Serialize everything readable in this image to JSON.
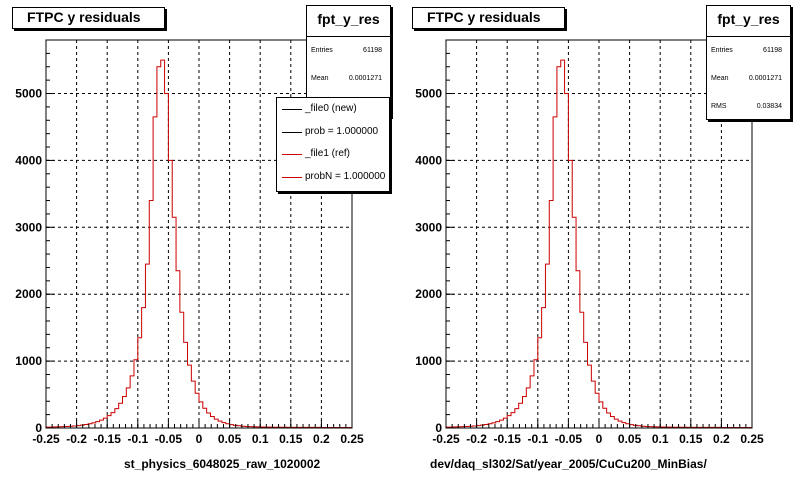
{
  "chart_data": [
    {
      "type": "histogram",
      "title": "FTPC y residuals",
      "xlabel": "st_physics_6048025_raw_1020002",
      "xlim": [
        -0.25,
        0.25
      ],
      "ylim": [
        0,
        5800
      ],
      "x_ticks": [
        "-0.25",
        "-0.2",
        "-0.15",
        "-0.1",
        "-0.05",
        "0",
        "0.05",
        "0.1",
        "0.15",
        "0.2",
        "0.25"
      ],
      "y_ticks": [
        "0",
        "1000",
        "2000",
        "3000",
        "4000",
        "5000"
      ],
      "grid": true,
      "stats": {
        "name": "fpt_y_res",
        "rows": [
          {
            "key": "Entries",
            "value": "61198"
          },
          {
            "key": "Mean",
            "value": "0.0001271"
          }
        ]
      },
      "legend": {
        "placement": "top-right",
        "entries": [
          {
            "label": "_file0 (new)",
            "color": "#000000"
          },
          {
            "label": "prob = 1.000000",
            "color": "#000000"
          },
          {
            "label": "_file1 (ref)",
            "color": "#cc0000"
          },
          {
            "label": "probN = 1.000000",
            "color": "#cc0000"
          }
        ]
      },
      "series": [
        {
          "color": "#cc0000",
          "values": [
            13,
            14,
            16,
            18,
            20,
            23,
            26,
            30,
            36,
            43,
            52,
            63,
            77,
            95,
            118,
            148,
            185,
            230,
            290,
            370,
            470,
            600,
            780,
            1020,
            1350,
            1800,
            2450,
            3400,
            4650,
            5400,
            5500,
            5000,
            4000,
            3150,
            2350,
            1730,
            1280,
            940,
            700,
            520,
            390,
            295,
            225,
            172,
            133,
            103,
            80,
            63,
            50,
            40,
            33,
            27,
            23,
            20,
            18,
            16,
            15,
            14,
            13,
            12,
            12,
            11,
            11,
            10,
            10,
            10,
            10,
            10,
            9,
            9,
            9,
            9,
            8,
            8,
            8,
            8,
            8,
            8,
            8,
            8
          ]
        }
      ]
    },
    {
      "type": "histogram",
      "title": "FTPC y residuals",
      "xlabel": "dev/daq_sl302/Sat/year_2005/CuCu200_MinBias/",
      "xlim": [
        -0.25,
        0.25
      ],
      "ylim": [
        0,
        5800
      ],
      "x_ticks": [
        "-0.25",
        "-0.2",
        "-0.15",
        "-0.1",
        "-0.05",
        "0",
        "0.05",
        "0.1",
        "0.15",
        "0.2",
        "0.25"
      ],
      "y_ticks": [
        "0",
        "1000",
        "2000",
        "3000",
        "4000",
        "5000"
      ],
      "grid": true,
      "stats": {
        "name": "fpt_y_res",
        "rows": [
          {
            "key": "Entries",
            "value": "61198"
          },
          {
            "key": "Mean",
            "value": "0.0001271"
          },
          {
            "key": "RMS",
            "value": "0.03834"
          }
        ]
      },
      "series": [
        {
          "color": "#cc0000",
          "values": [
            13,
            14,
            16,
            18,
            20,
            23,
            26,
            30,
            36,
            43,
            52,
            63,
            77,
            95,
            118,
            148,
            185,
            230,
            290,
            370,
            470,
            600,
            780,
            1020,
            1350,
            1800,
            2450,
            3400,
            4650,
            5400,
            5500,
            5000,
            4000,
            3150,
            2350,
            1730,
            1280,
            940,
            700,
            520,
            390,
            295,
            225,
            172,
            133,
            103,
            80,
            63,
            50,
            40,
            33,
            27,
            23,
            20,
            18,
            16,
            15,
            14,
            13,
            12,
            12,
            11,
            11,
            10,
            10,
            10,
            10,
            10,
            9,
            9,
            9,
            9,
            8,
            8,
            8,
            8,
            8,
            8,
            8,
            8
          ]
        }
      ]
    }
  ]
}
